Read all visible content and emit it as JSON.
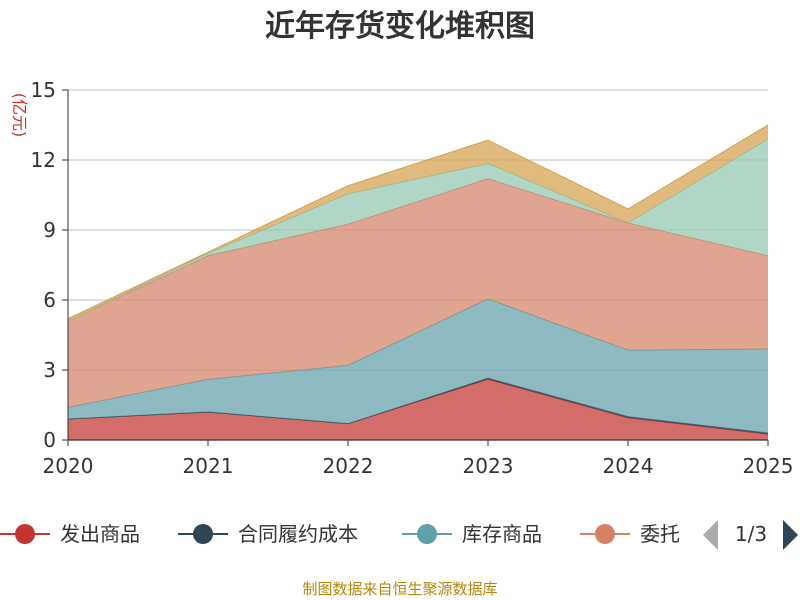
{
  "chart_data": {
    "type": "area",
    "stacked": true,
    "title": "近年存货变化堆积图",
    "ylabel": "(亿元)",
    "xlabel": "",
    "x": [
      "2020",
      "2021",
      "2022",
      "2023",
      "2024",
      "2025"
    ],
    "ylim": [
      0,
      15
    ],
    "yticks": [
      0,
      3,
      6,
      9,
      12,
      15
    ],
    "grid": true,
    "series": [
      {
        "name": "发出商品",
        "color": "#c23531",
        "values": [
          0.9,
          1.2,
          0.7,
          2.6,
          0.95,
          0.25
        ]
      },
      {
        "name": "合同履约成本",
        "color": "#2f4554",
        "values": [
          0.0,
          0.0,
          0.0,
          0.05,
          0.05,
          0.05
        ]
      },
      {
        "name": "库存商品",
        "color": "#61a0a8",
        "values": [
          0.5,
          1.4,
          2.5,
          3.4,
          2.85,
          3.6
        ]
      },
      {
        "name": "委托加工物资",
        "color": "#d48265",
        "values": [
          3.7,
          5.3,
          6.05,
          5.15,
          5.45,
          4.0
        ]
      },
      {
        "name": "",
        "color": "#91c7ae",
        "values": [
          0.0,
          0.1,
          1.3,
          0.65,
          0.0,
          5.0
        ]
      },
      {
        "name": "",
        "color": "#d4a04e",
        "values": [
          0.1,
          0.05,
          0.35,
          1.0,
          0.6,
          0.6
        ]
      }
    ],
    "legend": {
      "position": "bottom",
      "visible_labels": [
        "发出商品",
        "合同履约成本",
        "库存商品",
        "委托"
      ],
      "page": "1/3"
    },
    "source": "制图数据来自恒生聚源数据库"
  }
}
